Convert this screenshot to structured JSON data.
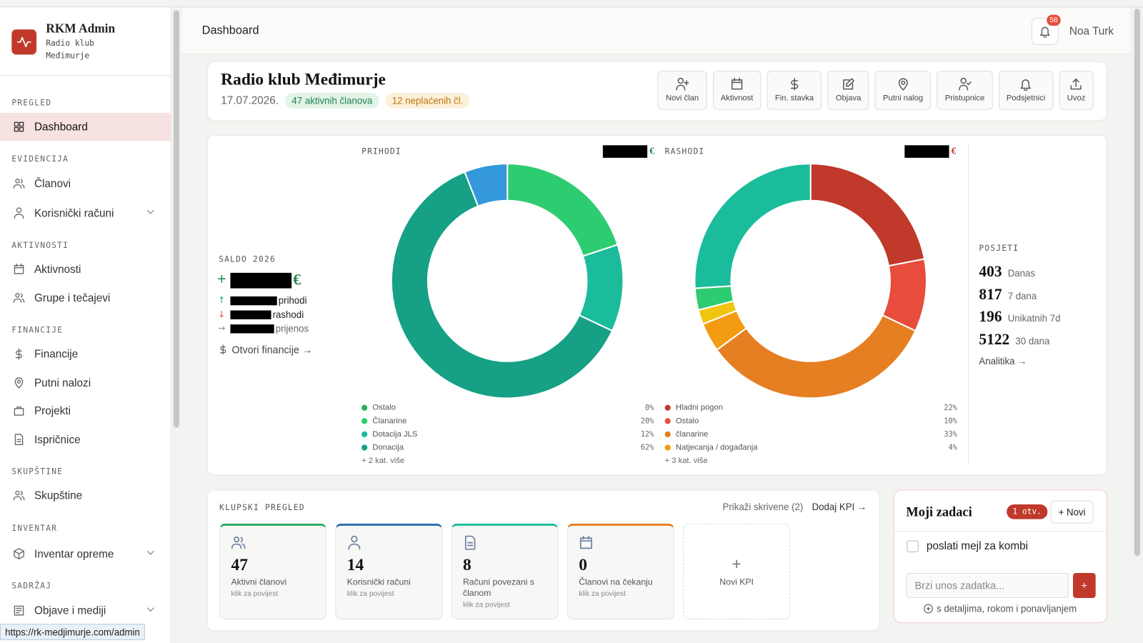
{
  "brand": {
    "title": "RKM Admin",
    "subtitle": "Radio klub Međimurje"
  },
  "nav": [
    {
      "section": "PREGLED",
      "items": [
        "Dashboard"
      ]
    },
    {
      "section": "EVIDENCIJA",
      "items": [
        "Članovi",
        "Korisnički računi"
      ]
    },
    {
      "section": "AKTIVNOSTI",
      "items": [
        "Aktivnosti",
        "Grupe i tečajevi"
      ]
    },
    {
      "section": "FINANCIJE",
      "items": [
        "Financije",
        "Putni nalozi",
        "Projekti",
        "Ispričnice"
      ]
    },
    {
      "section": "SKUPŠTINE",
      "items": [
        "Skupštine"
      ]
    },
    {
      "section": "INVENTAR",
      "items": [
        "Inventar opreme"
      ]
    },
    {
      "section": "SADRŽAJ",
      "items": [
        "Objave i mediji"
      ]
    }
  ],
  "status_url": "https://rk-medjimurje.com/admin",
  "topbar": {
    "title": "Dashboard",
    "notifications": 58,
    "user": "Noa Turk"
  },
  "club": {
    "name": "Radio klub Međimurje",
    "date": "17.07.2026.",
    "badges": [
      "47 aktivnih članova",
      "12 neplaćenih čl."
    ],
    "actions": [
      "Novi član",
      "Aktivnost",
      "Fin. stavka",
      "Objava",
      "Putni nalog",
      "Pristupnice",
      "Podsjetnici",
      "Uvoz"
    ]
  },
  "finance": {
    "saldo_label": "SALDO 2026",
    "sign": "+",
    "currency": "€",
    "lines": [
      "prihodi",
      "rashodi",
      "prijenos"
    ],
    "link": "Otvori financije →"
  },
  "chart_data": [
    {
      "type": "pie",
      "title": "PRIHODI",
      "categories": [
        "Ostalo",
        "Članarine",
        "Dotacija JLS",
        "Donacija",
        null
      ],
      "values": [
        0,
        20,
        12,
        62,
        6
      ],
      "value_labels": [
        "0%",
        "20%",
        "12%",
        "62%",
        null
      ],
      "colors": [
        "#27ae60",
        "#2ecc71",
        "#1abc9c",
        "#16a085",
        "#3498db"
      ],
      "more": "+ 2 kat. više",
      "currency_color": "#1e8449"
    },
    {
      "type": "pie",
      "title": "RASHODI",
      "categories": [
        "Hladni pogon",
        "Ostalo",
        "članarine",
        "Natjecanja / događanja",
        null,
        null,
        null
      ],
      "values": [
        22,
        10,
        33,
        4,
        2,
        3,
        26
      ],
      "value_labels": [
        "22%",
        "10%",
        "33%",
        "4%",
        null,
        null,
        null
      ],
      "colors": [
        "#c0392b",
        "#e74c3c",
        "#e67e22",
        "#f39c12",
        "#f1c40f",
        "#2ecc71",
        "#1abc9c"
      ],
      "more": "+ 3 kat. više",
      "currency_color": "#c0392b"
    }
  ],
  "visits": {
    "title": "POSJETI",
    "stats": [
      {
        "value": 403,
        "label": "Danas"
      },
      {
        "value": 817,
        "label": "7 dana"
      },
      {
        "value": 196,
        "label": "Unikatnih 7d"
      },
      {
        "value": 5122,
        "label": "30 dana"
      }
    ],
    "link": "Analitika →"
  },
  "club_overview": {
    "title": "KLUPSKI PREGLED",
    "show_hidden": "Prikaži skrivene (2)",
    "add_kpi": "Dodaj KPI →",
    "kpis": [
      {
        "value": 47,
        "label": "Aktivni članovi",
        "hint": "klik za povijest",
        "color": "#27ae60"
      },
      {
        "value": 14,
        "label": "Korisnički računi",
        "hint": "klik za povijest",
        "color": "#2c6fb0"
      },
      {
        "value": 8,
        "label": "Računi povezani s članom",
        "hint": "klik za povijest",
        "color": "#1abc9c"
      },
      {
        "value": 0,
        "label": "Članovi na čekanju",
        "hint": "klik za povijest",
        "color": "#e67e22"
      }
    ],
    "new_kpi": "Novi KPI"
  },
  "tasks": {
    "title": "Moji zadaci",
    "badge": "1 otv.",
    "new": "+ Novi",
    "items": [
      "poslati mejl za kombi"
    ],
    "placeholder": "Brzi unos zadatka...",
    "add": "+",
    "details": "s detaljima, rokom i ponavljanjem"
  }
}
